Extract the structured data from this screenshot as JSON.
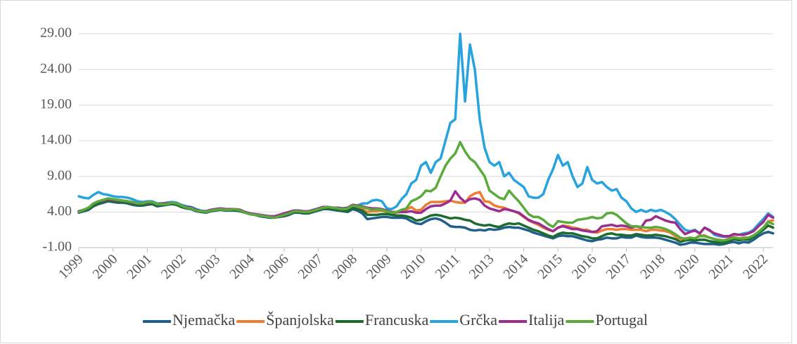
{
  "chart_data": {
    "type": "line",
    "categories": [
      "1999",
      null,
      null,
      null,
      null,
      null,
      null,
      "2000",
      null,
      null,
      null,
      null,
      null,
      null,
      "2001",
      null,
      null,
      null,
      null,
      null,
      null,
      "2002",
      null,
      null,
      null,
      null,
      null,
      null,
      "2003",
      null,
      null,
      null,
      null,
      null,
      null,
      "2004",
      null,
      null,
      null,
      null,
      null,
      null,
      "2006",
      null,
      null,
      null,
      null,
      null,
      null,
      "2007",
      null,
      null,
      null,
      null,
      null,
      null,
      "2008",
      null,
      null,
      null,
      null,
      null,
      null,
      "2009",
      null,
      null,
      null,
      null,
      null,
      null,
      "2010",
      null,
      null,
      null,
      null,
      null,
      null,
      "2011",
      null,
      null,
      null,
      null,
      null,
      null,
      "2013",
      null,
      null,
      null,
      null,
      null,
      null,
      "2014",
      null,
      null,
      null,
      null,
      null,
      null,
      "2015",
      null,
      null,
      null,
      null,
      null,
      null,
      "2016",
      null,
      null,
      null,
      null,
      null,
      null,
      "2017",
      null,
      null,
      null,
      null,
      null,
      null,
      "2018",
      null,
      null,
      null,
      null,
      null,
      null,
      "2020",
      null,
      null,
      null,
      null,
      null,
      null,
      "2021",
      null,
      null,
      null,
      null,
      null,
      null,
      "2022",
      null,
      null
    ],
    "ylim": [
      -1,
      29
    ],
    "yticks": [
      {
        "value": -1,
        "label": "-1.00"
      },
      {
        "value": 4,
        "label": "4.00"
      },
      {
        "value": 9,
        "label": "9.00"
      },
      {
        "value": 14,
        "label": "14.00"
      },
      {
        "value": 19,
        "label": "19.00"
      },
      {
        "value": 24,
        "label": "24.00"
      },
      {
        "value": 29,
        "label": "29.00"
      }
    ],
    "grid": true,
    "legend": "bottom",
    "series": [
      {
        "name": "Njemačka",
        "color": "#1f5f8b",
        "values": [
          3.9,
          4.1,
          4.3,
          4.8,
          5.1,
          5.3,
          5.5,
          5.4,
          5.3,
          5.3,
          5.2,
          5.0,
          4.9,
          4.9,
          5.0,
          5.1,
          4.8,
          4.9,
          5.0,
          5.1,
          5.0,
          4.7,
          4.5,
          4.4,
          4.1,
          4.0,
          3.9,
          4.1,
          4.2,
          4.3,
          4.2,
          4.2,
          4.2,
          4.1,
          3.9,
          3.7,
          3.6,
          3.4,
          3.3,
          3.2,
          3.2,
          3.3,
          3.4,
          3.6,
          3.9,
          3.9,
          3.8,
          3.8,
          4.0,
          4.2,
          4.4,
          4.4,
          4.3,
          4.2,
          4.1,
          4.0,
          4.4,
          4.2,
          3.8,
          3.0,
          3.1,
          3.2,
          3.3,
          3.3,
          3.2,
          3.2,
          3.2,
          3.1,
          2.7,
          2.4,
          2.3,
          2.7,
          3.0,
          3.1,
          2.9,
          2.5,
          2.0,
          1.9,
          1.9,
          1.8,
          1.5,
          1.4,
          1.5,
          1.4,
          1.6,
          1.5,
          1.6,
          1.8,
          1.9,
          1.8,
          1.8,
          1.6,
          1.4,
          1.1,
          0.9,
          0.7,
          0.5,
          0.3,
          0.6,
          0.7,
          0.6,
          0.6,
          0.4,
          0.2,
          0.0,
          -0.1,
          0.1,
          0.2,
          0.4,
          0.3,
          0.3,
          0.5,
          0.4,
          0.4,
          0.7,
          0.5,
          0.4,
          0.4,
          0.4,
          0.3,
          0.1,
          -0.1,
          -0.3,
          -0.6,
          -0.5,
          -0.3,
          -0.3,
          -0.4,
          -0.5,
          -0.5,
          -0.5,
          -0.6,
          -0.5,
          -0.3,
          -0.2,
          -0.4,
          -0.2,
          -0.3,
          0.1,
          0.6,
          1.0,
          1.2,
          1.0
        ]
      },
      {
        "name": "Španjolska",
        "color": "#ed7d31",
        "values": [
          4.1,
          4.3,
          4.6,
          5.1,
          5.4,
          5.6,
          5.8,
          5.6,
          5.5,
          5.5,
          5.4,
          5.2,
          5.1,
          5.1,
          5.3,
          5.3,
          5.0,
          5.1,
          5.1,
          5.3,
          5.1,
          4.8,
          4.6,
          4.5,
          4.2,
          4.1,
          4.0,
          4.2,
          4.3,
          4.4,
          4.3,
          4.3,
          4.3,
          4.2,
          3.9,
          3.7,
          3.6,
          3.5,
          3.4,
          3.3,
          3.3,
          3.4,
          3.5,
          3.8,
          4.0,
          4.0,
          3.9,
          3.9,
          4.1,
          4.3,
          4.6,
          4.6,
          4.5,
          4.4,
          4.3,
          4.3,
          4.8,
          4.6,
          4.4,
          4.0,
          4.1,
          4.1,
          4.2,
          4.0,
          3.8,
          3.9,
          4.1,
          4.3,
          4.7,
          4.2,
          4.3,
          5.0,
          5.4,
          5.4,
          5.4,
          5.5,
          5.6,
          5.4,
          5.3,
          5.3,
          6.2,
          6.6,
          6.8,
          5.5,
          5.4,
          4.9,
          4.7,
          4.6,
          4.3,
          4.1,
          3.8,
          3.3,
          2.8,
          2.5,
          2.2,
          1.8,
          1.5,
          1.3,
          1.8,
          2.1,
          2.0,
          1.8,
          1.7,
          1.5,
          1.5,
          1.2,
          1.1,
          1.4,
          1.6,
          1.6,
          1.5,
          1.6,
          1.6,
          1.5,
          1.5,
          1.5,
          1.3,
          1.5,
          1.5,
          1.4,
          1.3,
          1.1,
          0.6,
          0.2,
          0.3,
          0.4,
          0.3,
          0.7,
          0.7,
          0.4,
          0.2,
          0.1,
          0.0,
          0.3,
          0.5,
          0.3,
          0.4,
          0.4,
          0.7,
          1.2,
          1.8,
          2.7,
          2.8
        ]
      },
      {
        "name": "Francuska",
        "color": "#1e6b2e",
        "values": [
          4.0,
          4.2,
          4.4,
          4.9,
          5.2,
          5.4,
          5.6,
          5.5,
          5.4,
          5.4,
          5.3,
          5.1,
          5.0,
          5.0,
          5.1,
          5.2,
          4.9,
          5.0,
          5.0,
          5.2,
          5.0,
          4.7,
          4.5,
          4.5,
          4.2,
          4.0,
          4.0,
          4.1,
          4.3,
          4.3,
          4.3,
          4.3,
          4.3,
          4.1,
          3.9,
          3.7,
          3.6,
          3.5,
          3.4,
          3.3,
          3.2,
          3.4,
          3.5,
          3.7,
          4.0,
          4.0,
          3.9,
          3.8,
          4.1,
          4.3,
          4.5,
          4.5,
          4.4,
          4.3,
          4.2,
          4.1,
          4.6,
          4.4,
          4.2,
          3.6,
          3.6,
          3.6,
          3.7,
          3.7,
          3.6,
          3.5,
          3.5,
          3.4,
          3.2,
          2.8,
          2.9,
          3.2,
          3.5,
          3.6,
          3.5,
          3.3,
          3.1,
          3.2,
          3.1,
          2.9,
          2.8,
          2.4,
          2.2,
          2.1,
          2.2,
          2.0,
          1.9,
          2.2,
          2.4,
          2.3,
          2.4,
          2.1,
          1.8,
          1.5,
          1.3,
          1.0,
          0.7,
          0.5,
          0.9,
          1.1,
          1.0,
          1.0,
          0.8,
          0.6,
          0.5,
          0.3,
          0.3,
          0.6,
          0.9,
          1.0,
          0.8,
          0.8,
          0.7,
          0.7,
          0.9,
          0.8,
          0.7,
          0.7,
          0.8,
          0.7,
          0.6,
          0.4,
          0.2,
          -0.2,
          0.0,
          0.1,
          0.0,
          0.1,
          0.1,
          -0.1,
          -0.2,
          -0.3,
          -0.3,
          -0.1,
          0.2,
          0.0,
          0.2,
          0.1,
          0.5,
          1.0,
          1.5,
          2.1,
          1.8
        ]
      },
      {
        "name": "Grčka",
        "color": "#27a3dd",
        "values": [
          6.2,
          6.0,
          5.9,
          6.4,
          6.8,
          6.5,
          6.4,
          6.2,
          6.1,
          6.1,
          6.0,
          5.8,
          5.5,
          5.4,
          5.5,
          5.5,
          5.2,
          5.2,
          5.3,
          5.4,
          5.3,
          5.0,
          4.8,
          4.7,
          4.4,
          4.2,
          4.1,
          4.3,
          4.4,
          4.5,
          4.4,
          4.4,
          4.4,
          4.2,
          4.0,
          3.8,
          3.7,
          3.6,
          3.5,
          3.4,
          3.3,
          3.5,
          3.7,
          3.9,
          4.2,
          4.2,
          4.1,
          4.1,
          4.3,
          4.5,
          4.7,
          4.7,
          4.6,
          4.6,
          4.5,
          4.6,
          5.0,
          4.9,
          5.2,
          5.2,
          5.6,
          5.7,
          5.5,
          4.5,
          4.4,
          4.8,
          5.8,
          6.5,
          8.0,
          8.5,
          10.5,
          11.0,
          9.5,
          11.0,
          11.5,
          14.0,
          16.5,
          17.0,
          29.0,
          19.5,
          27.5,
          24.0,
          17.0,
          13.0,
          11.0,
          10.5,
          11.0,
          9.0,
          9.5,
          8.5,
          8.0,
          7.5,
          6.2,
          6.0,
          6.0,
          6.5,
          8.5,
          10.0,
          12.0,
          10.5,
          11.0,
          9.0,
          7.5,
          8.0,
          10.3,
          8.5,
          8.0,
          8.2,
          7.5,
          7.0,
          7.2,
          6.0,
          5.5,
          4.5,
          4.0,
          4.3,
          4.0,
          4.3,
          4.1,
          4.3,
          4.0,
          3.6,
          3.0,
          2.2,
          1.5,
          1.3,
          1.5,
          1.0,
          1.8,
          1.5,
          0.8,
          0.6,
          0.5,
          0.6,
          0.9,
          0.8,
          1.0,
          1.1,
          1.5,
          2.3,
          3.0,
          3.8,
          3.3
        ]
      },
      {
        "name": "Italija",
        "color": "#9b2d91",
        "values": [
          4.1,
          4.3,
          4.6,
          5.2,
          5.5,
          5.6,
          5.8,
          5.7,
          5.6,
          5.6,
          5.5,
          5.3,
          5.2,
          5.2,
          5.3,
          5.4,
          5.1,
          5.2,
          5.2,
          5.3,
          5.2,
          4.9,
          4.7,
          4.6,
          4.3,
          4.1,
          4.1,
          4.3,
          4.4,
          4.5,
          4.4,
          4.4,
          4.4,
          4.3,
          4.0,
          3.8,
          3.7,
          3.6,
          3.5,
          3.4,
          3.4,
          3.6,
          3.8,
          4.0,
          4.2,
          4.2,
          4.1,
          4.1,
          4.3,
          4.5,
          4.7,
          4.7,
          4.6,
          4.6,
          4.5,
          4.6,
          5.0,
          4.9,
          4.8,
          4.6,
          4.5,
          4.5,
          4.4,
          4.2,
          4.0,
          4.0,
          4.0,
          4.0,
          4.1,
          3.9,
          3.9,
          4.4,
          4.8,
          4.9,
          4.9,
          5.2,
          5.6,
          6.9,
          6.0,
          5.4,
          5.8,
          5.9,
          5.7,
          4.9,
          4.5,
          4.3,
          4.1,
          4.4,
          4.3,
          4.1,
          3.9,
          3.4,
          2.9,
          2.6,
          2.4,
          2.0,
          1.6,
          1.3,
          1.8,
          2.0,
          1.8,
          1.6,
          1.6,
          1.4,
          1.3,
          1.2,
          1.3,
          2.0,
          2.1,
          2.2,
          2.0,
          2.1,
          2.0,
          1.8,
          2.0,
          1.8,
          2.8,
          2.9,
          3.4,
          3.1,
          2.8,
          2.6,
          2.5,
          1.6,
          0.9,
          1.2,
          1.4,
          1.0,
          1.8,
          1.4,
          1.0,
          0.8,
          0.6,
          0.6,
          0.9,
          0.8,
          0.8,
          1.0,
          1.3,
          2.0,
          2.6,
          3.6,
          3.2
        ]
      },
      {
        "name": "Portugal",
        "color": "#5aaa3c",
        "values": [
          4.0,
          4.3,
          4.6,
          5.2,
          5.5,
          5.7,
          5.9,
          5.8,
          5.7,
          5.6,
          5.5,
          5.4,
          5.2,
          5.2,
          5.4,
          5.4,
          5.1,
          5.1,
          5.1,
          5.3,
          5.2,
          4.9,
          4.6,
          4.5,
          4.2,
          4.1,
          4.0,
          4.2,
          4.3,
          4.4,
          4.3,
          4.3,
          4.4,
          4.2,
          3.9,
          3.7,
          3.6,
          3.5,
          3.4,
          3.3,
          3.2,
          3.4,
          3.6,
          3.8,
          4.1,
          4.1,
          4.0,
          4.0,
          4.2,
          4.4,
          4.6,
          4.7,
          4.6,
          4.5,
          4.4,
          4.5,
          4.9,
          4.8,
          4.7,
          4.5,
          4.3,
          4.4,
          4.3,
          4.1,
          3.9,
          4.0,
          4.3,
          4.5,
          5.5,
          5.8,
          6.2,
          7.0,
          6.9,
          7.4,
          9.0,
          10.5,
          11.5,
          12.2,
          13.8,
          12.5,
          11.5,
          11.0,
          10.0,
          9.0,
          7.0,
          6.5,
          6.0,
          5.8,
          7.0,
          6.2,
          5.5,
          4.6,
          3.7,
          3.3,
          3.3,
          2.9,
          2.3,
          1.9,
          2.7,
          2.6,
          2.5,
          2.5,
          2.9,
          3.0,
          3.1,
          3.3,
          3.1,
          3.2,
          3.8,
          3.9,
          3.6,
          3.0,
          2.4,
          2.0,
          2.0,
          1.9,
          1.8,
          1.8,
          1.9,
          1.8,
          1.6,
          1.3,
          0.9,
          0.4,
          0.2,
          0.4,
          0.3,
          0.6,
          0.6,
          0.4,
          0.2,
          0.0,
          0.0,
          0.2,
          0.4,
          0.3,
          0.3,
          0.4,
          0.7,
          1.2,
          1.8,
          2.6,
          2.3
        ]
      }
    ]
  }
}
